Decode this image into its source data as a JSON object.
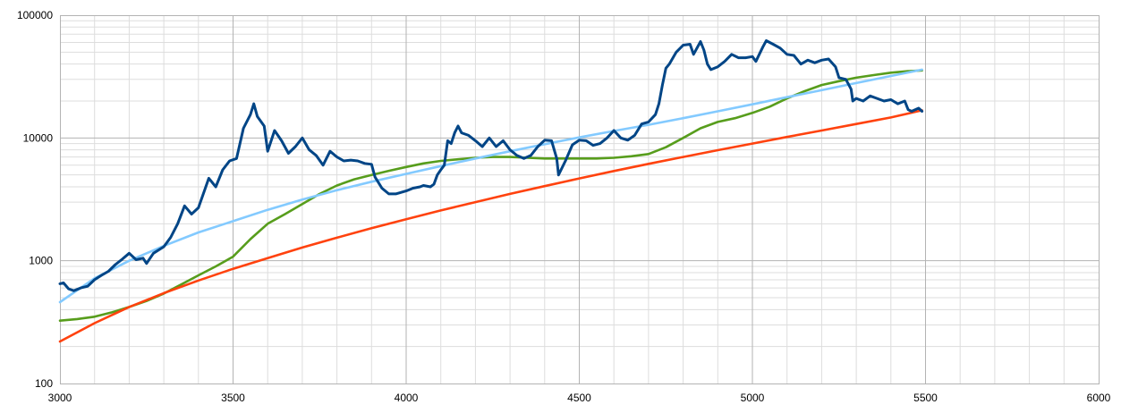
{
  "chart_data": {
    "type": "line",
    "title": "",
    "xlabel": "",
    "ylabel": "",
    "x_axis": {
      "scale": "linear",
      "range": [
        3000,
        6000
      ],
      "ticks": [
        3000,
        3500,
        4000,
        4500,
        5000,
        5500,
        6000
      ],
      "tick_labels": [
        "3000",
        "3500",
        "4000",
        "4500",
        "5000",
        "5500",
        "6000"
      ]
    },
    "y_axis": {
      "scale": "log",
      "range": [
        100,
        100000
      ],
      "ticks": [
        100,
        1000,
        10000,
        100000
      ],
      "tick_labels": [
        "100",
        "1000",
        "10000",
        "100000"
      ]
    },
    "grid": true,
    "legend": "none",
    "series": [
      {
        "color": "#004586",
        "points": [
          [
            3000,
            650
          ],
          [
            3010,
            660
          ],
          [
            3025,
            590
          ],
          [
            3040,
            570
          ],
          [
            3060,
            600
          ],
          [
            3080,
            620
          ],
          [
            3100,
            700
          ],
          [
            3120,
            760
          ],
          [
            3140,
            820
          ],
          [
            3160,
            930
          ],
          [
            3180,
            1030
          ],
          [
            3200,
            1150
          ],
          [
            3220,
            1020
          ],
          [
            3240,
            1050
          ],
          [
            3250,
            950
          ],
          [
            3270,
            1150
          ],
          [
            3300,
            1300
          ],
          [
            3320,
            1550
          ],
          [
            3340,
            2000
          ],
          [
            3360,
            2800
          ],
          [
            3380,
            2400
          ],
          [
            3400,
            2700
          ],
          [
            3420,
            3900
          ],
          [
            3430,
            4700
          ],
          [
            3450,
            4000
          ],
          [
            3470,
            5500
          ],
          [
            3490,
            6500
          ],
          [
            3510,
            6800
          ],
          [
            3530,
            12000
          ],
          [
            3550,
            15500
          ],
          [
            3560,
            19000
          ],
          [
            3570,
            15000
          ],
          [
            3590,
            12500
          ],
          [
            3600,
            7800
          ],
          [
            3620,
            11500
          ],
          [
            3640,
            9500
          ],
          [
            3660,
            7500
          ],
          [
            3680,
            8500
          ],
          [
            3700,
            10000
          ],
          [
            3720,
            8000
          ],
          [
            3740,
            7200
          ],
          [
            3760,
            6000
          ],
          [
            3780,
            7800
          ],
          [
            3800,
            7000
          ],
          [
            3820,
            6500
          ],
          [
            3840,
            6600
          ],
          [
            3860,
            6500
          ],
          [
            3880,
            6200
          ],
          [
            3900,
            6100
          ],
          [
            3910,
            4800
          ],
          [
            3930,
            3900
          ],
          [
            3950,
            3500
          ],
          [
            3970,
            3500
          ],
          [
            4000,
            3700
          ],
          [
            4020,
            3900
          ],
          [
            4040,
            4000
          ],
          [
            4050,
            4100
          ],
          [
            4070,
            4000
          ],
          [
            4080,
            4200
          ],
          [
            4090,
            5000
          ],
          [
            4100,
            5500
          ],
          [
            4110,
            6000
          ],
          [
            4120,
            9500
          ],
          [
            4130,
            9000
          ],
          [
            4140,
            11000
          ],
          [
            4150,
            12500
          ],
          [
            4160,
            11000
          ],
          [
            4180,
            10500
          ],
          [
            4200,
            9500
          ],
          [
            4220,
            8500
          ],
          [
            4240,
            10000
          ],
          [
            4260,
            8500
          ],
          [
            4280,
            9500
          ],
          [
            4300,
            8000
          ],
          [
            4320,
            7200
          ],
          [
            4340,
            6800
          ],
          [
            4360,
            7200
          ],
          [
            4380,
            8500
          ],
          [
            4400,
            9600
          ],
          [
            4420,
            9500
          ],
          [
            4435,
            6800
          ],
          [
            4440,
            5000
          ],
          [
            4460,
            6500
          ],
          [
            4480,
            8800
          ],
          [
            4500,
            9600
          ],
          [
            4520,
            9500
          ],
          [
            4540,
            8700
          ],
          [
            4560,
            9000
          ],
          [
            4580,
            10000
          ],
          [
            4600,
            11500
          ],
          [
            4620,
            10000
          ],
          [
            4640,
            9600
          ],
          [
            4660,
            10500
          ],
          [
            4680,
            13000
          ],
          [
            4700,
            13500
          ],
          [
            4720,
            15500
          ],
          [
            4730,
            19000
          ],
          [
            4740,
            27000
          ],
          [
            4750,
            37000
          ],
          [
            4760,
            40000
          ],
          [
            4780,
            50000
          ],
          [
            4800,
            57000
          ],
          [
            4820,
            58000
          ],
          [
            4830,
            48000
          ],
          [
            4850,
            61000
          ],
          [
            4860,
            52000
          ],
          [
            4870,
            40000
          ],
          [
            4880,
            36000
          ],
          [
            4900,
            38000
          ],
          [
            4920,
            42000
          ],
          [
            4940,
            48000
          ],
          [
            4960,
            45000
          ],
          [
            4980,
            45000
          ],
          [
            5000,
            46000
          ],
          [
            5010,
            42000
          ],
          [
            5030,
            55000
          ],
          [
            5040,
            62000
          ],
          [
            5060,
            58000
          ],
          [
            5080,
            54000
          ],
          [
            5100,
            48000
          ],
          [
            5120,
            47000
          ],
          [
            5140,
            40000
          ],
          [
            5160,
            43000
          ],
          [
            5180,
            41000
          ],
          [
            5200,
            43000
          ],
          [
            5220,
            44000
          ],
          [
            5240,
            38000
          ],
          [
            5250,
            31000
          ],
          [
            5270,
            30000
          ],
          [
            5285,
            25000
          ],
          [
            5290,
            20000
          ],
          [
            5300,
            21000
          ],
          [
            5320,
            20000
          ],
          [
            5340,
            22000
          ],
          [
            5360,
            21000
          ],
          [
            5380,
            20000
          ],
          [
            5400,
            20500
          ],
          [
            5420,
            19000
          ],
          [
            5440,
            20000
          ],
          [
            5450,
            17000
          ],
          [
            5460,
            16500
          ],
          [
            5480,
            17500
          ],
          [
            5490,
            16500
          ]
        ]
      },
      {
        "color": "#83caff",
        "points": [
          [
            3000,
            460
          ],
          [
            3100,
            720
          ],
          [
            3200,
            1000
          ],
          [
            3300,
            1320
          ],
          [
            3400,
            1700
          ],
          [
            3500,
            2100
          ],
          [
            3600,
            2600
          ],
          [
            3700,
            3150
          ],
          [
            3800,
            3750
          ],
          [
            3900,
            4400
          ],
          [
            4000,
            5100
          ],
          [
            4100,
            5900
          ],
          [
            4200,
            6800
          ],
          [
            4300,
            7800
          ],
          [
            4400,
            8900
          ],
          [
            4500,
            10100
          ],
          [
            4600,
            11400
          ],
          [
            4700,
            12800
          ],
          [
            4800,
            14500
          ],
          [
            4900,
            16500
          ],
          [
            5000,
            18800
          ],
          [
            5100,
            21500
          ],
          [
            5200,
            24500
          ],
          [
            5300,
            28000
          ],
          [
            5400,
            32000
          ],
          [
            5490,
            36000
          ]
        ]
      },
      {
        "color": "#579d1c",
        "points": [
          [
            3000,
            325
          ],
          [
            3050,
            335
          ],
          [
            3100,
            350
          ],
          [
            3150,
            380
          ],
          [
            3200,
            420
          ],
          [
            3250,
            470
          ],
          [
            3300,
            540
          ],
          [
            3350,
            640
          ],
          [
            3400,
            760
          ],
          [
            3450,
            900
          ],
          [
            3500,
            1080
          ],
          [
            3550,
            1500
          ],
          [
            3600,
            2000
          ],
          [
            3650,
            2400
          ],
          [
            3700,
            2900
          ],
          [
            3750,
            3500
          ],
          [
            3800,
            4100
          ],
          [
            3850,
            4600
          ],
          [
            3900,
            5000
          ],
          [
            3950,
            5400
          ],
          [
            4000,
            5800
          ],
          [
            4050,
            6200
          ],
          [
            4100,
            6500
          ],
          [
            4150,
            6700
          ],
          [
            4200,
            6900
          ],
          [
            4250,
            7000
          ],
          [
            4300,
            7000
          ],
          [
            4350,
            6900
          ],
          [
            4400,
            6800
          ],
          [
            4450,
            6800
          ],
          [
            4500,
            6800
          ],
          [
            4550,
            6800
          ],
          [
            4600,
            6900
          ],
          [
            4650,
            7100
          ],
          [
            4700,
            7400
          ],
          [
            4750,
            8400
          ],
          [
            4800,
            10000
          ],
          [
            4850,
            12000
          ],
          [
            4900,
            13500
          ],
          [
            4950,
            14500
          ],
          [
            5000,
            16000
          ],
          [
            5050,
            18000
          ],
          [
            5100,
            21000
          ],
          [
            5150,
            24000
          ],
          [
            5200,
            27000
          ],
          [
            5250,
            29000
          ],
          [
            5300,
            31000
          ],
          [
            5350,
            32500
          ],
          [
            5400,
            34000
          ],
          [
            5450,
            35000
          ],
          [
            5490,
            35500
          ]
        ]
      },
      {
        "color": "#ff420e",
        "points": [
          [
            3000,
            220
          ],
          [
            3100,
            310
          ],
          [
            3200,
            420
          ],
          [
            3300,
            545
          ],
          [
            3400,
            690
          ],
          [
            3500,
            860
          ],
          [
            3600,
            1050
          ],
          [
            3700,
            1280
          ],
          [
            3800,
            1540
          ],
          [
            3900,
            1840
          ],
          [
            4000,
            2180
          ],
          [
            4100,
            2570
          ],
          [
            4200,
            3000
          ],
          [
            4300,
            3500
          ],
          [
            4400,
            4050
          ],
          [
            4500,
            4680
          ],
          [
            4600,
            5380
          ],
          [
            4700,
            6150
          ],
          [
            4800,
            7000
          ],
          [
            4900,
            7950
          ],
          [
            5000,
            9000
          ],
          [
            5100,
            10200
          ],
          [
            5200,
            11500
          ],
          [
            5300,
            13000
          ],
          [
            5400,
            14700
          ],
          [
            5490,
            16800
          ]
        ]
      }
    ]
  }
}
